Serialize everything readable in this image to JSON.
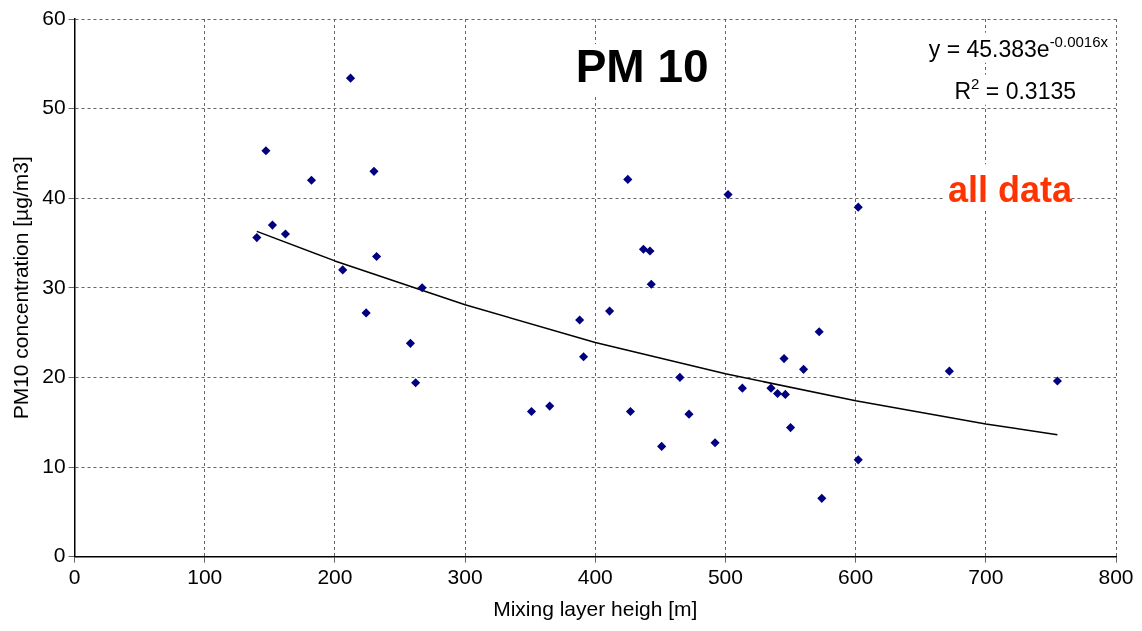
{
  "chart_data": {
    "type": "scatter",
    "title": "PM 10",
    "xlabel": "Mixing layer heigh [m]",
    "ylabel": "PM10 concentration [µg/m3]",
    "annotations": [
      "y = 45.383e$^{-0.0016x}$",
      "R$^{2}$ = 0.3135",
      "all data"
    ],
    "xlim": [
      0,
      800
    ],
    "xticks": [
      0,
      100,
      200,
      300,
      400,
      500,
      600,
      700,
      800
    ],
    "ylim": [
      0,
      60
    ],
    "yticks": [
      0,
      10,
      20,
      30,
      40,
      50,
      60
    ],
    "grid": true,
    "legend": false,
    "marker": "diamond",
    "series": [
      {
        "type": "scatter",
        "color": "#000080",
        "x": [
          140,
          147,
          152,
          162,
          182,
          206,
          212,
          224,
          230,
          232,
          258,
          262,
          267,
          351,
          365,
          388,
          391,
          411,
          425,
          427,
          437,
          442,
          443,
          451,
          465,
          472,
          492,
          502,
          513,
          535,
          540,
          545,
          546,
          550,
          560,
          572,
          574,
          602,
          602,
          672,
          755
        ],
        "values": [
          35.6,
          45.3,
          37,
          36,
          42,
          32,
          53.4,
          27.2,
          43,
          33.5,
          23.8,
          19.4,
          30,
          16.2,
          16.8,
          26.4,
          22.3,
          27.4,
          42.1,
          16.2,
          34.3,
          34.1,
          30.4,
          12.3,
          20,
          15.9,
          12.7,
          40.4,
          18.8,
          18.8,
          18.2,
          22.1,
          18.1,
          14.4,
          20.9,
          25.1,
          6.5,
          39,
          10.8,
          20.7,
          19.6
        ]
      },
      {
        "type": "line",
        "color": "#000000",
        "marker": "none",
        "line_style": "solid",
        "x": [
          140,
          200,
          300,
          400,
          500,
          600,
          700,
          755
        ],
        "values": [
          36.3,
          33.0,
          28.1,
          23.9,
          20.4,
          17.4,
          14.8,
          13.6
        ]
      }
    ]
  }
}
